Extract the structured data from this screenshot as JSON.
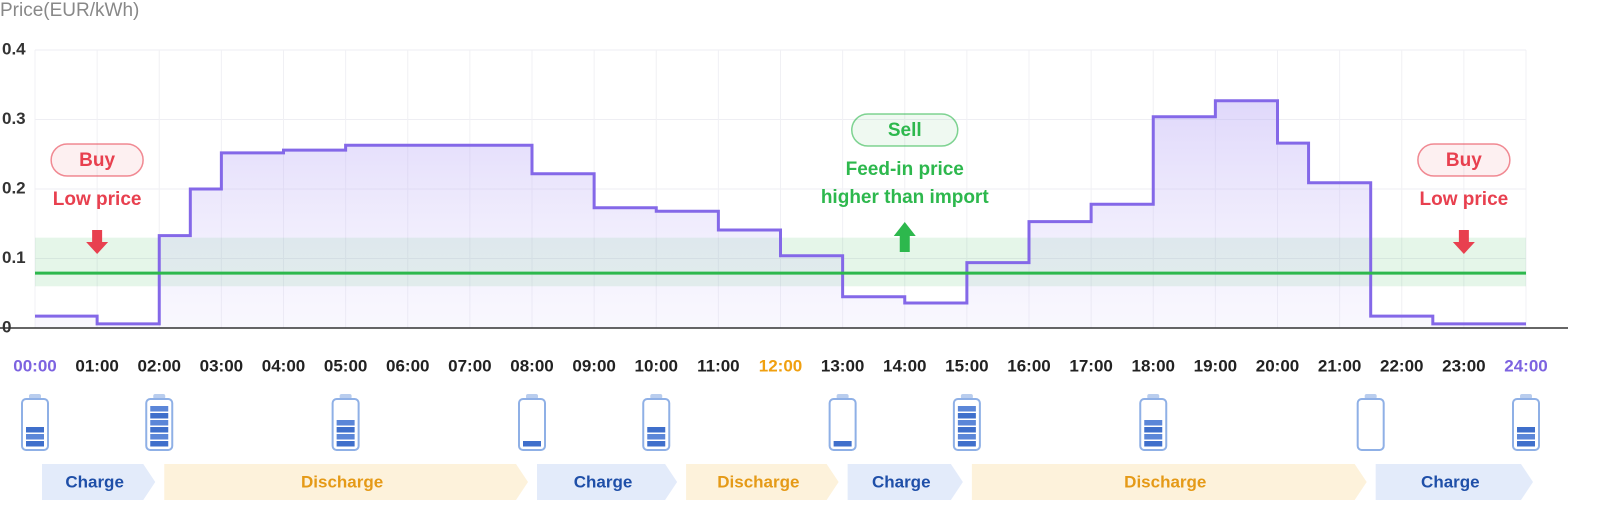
{
  "chart_data": {
    "type": "step",
    "y_label": "Price(EUR/kWh)",
    "x": [
      0,
      1,
      2,
      2.5,
      3,
      4,
      5,
      8,
      9,
      10,
      11,
      12,
      13,
      14,
      15,
      16,
      17,
      18,
      19,
      20,
      20.5,
      21.5,
      22.5,
      24
    ],
    "values": [
      0.017,
      0.006,
      0.133,
      0.2,
      0.252,
      0.256,
      0.263,
      0.222,
      0.173,
      0.168,
      0.141,
      0.104,
      0.045,
      0.036,
      0.094,
      0.153,
      0.178,
      0.304,
      0.327,
      0.266,
      0.209,
      0.017,
      0.006,
      0.006
    ],
    "color": "#8468e8",
    "xlim": [
      0,
      24
    ],
    "ylim": [
      0,
      0.4
    ],
    "yticks": [
      0,
      0.1,
      0.2,
      0.3,
      0.4
    ],
    "xticks": [
      {
        "value": 0,
        "label": "00:00"
      },
      {
        "value": 1,
        "label": "01:00"
      },
      {
        "value": 2,
        "label": "02:00"
      },
      {
        "value": 3,
        "label": "03:00"
      },
      {
        "value": 4,
        "label": "04:00"
      },
      {
        "value": 5,
        "label": "05:00"
      },
      {
        "value": 6,
        "label": "06:00"
      },
      {
        "value": 7,
        "label": "07:00"
      },
      {
        "value": 8,
        "label": "08:00"
      },
      {
        "value": 9,
        "label": "09:00"
      },
      {
        "value": 10,
        "label": "10:00"
      },
      {
        "value": 11,
        "label": "11:00"
      },
      {
        "value": 12,
        "label": "12:00"
      },
      {
        "value": 13,
        "label": "13:00"
      },
      {
        "value": 14,
        "label": "14:00"
      },
      {
        "value": 15,
        "label": "15:00"
      },
      {
        "value": 16,
        "label": "16:00"
      },
      {
        "value": 17,
        "label": "17:00"
      },
      {
        "value": 18,
        "label": "18:00"
      },
      {
        "value": 19,
        "label": "19:00"
      },
      {
        "value": 20,
        "label": "20:00"
      },
      {
        "value": 21,
        "label": "21:00"
      },
      {
        "value": 22,
        "label": "22:00"
      },
      {
        "value": 23,
        "label": "23:00"
      },
      {
        "value": 24,
        "label": "24:00"
      }
    ],
    "xtick_colors": [
      "#7d63e0",
      "#222",
      "#222",
      "#222",
      "#222",
      "#222",
      "#222",
      "#222",
      "#222",
      "#222",
      "#222",
      "#222",
      "#f0a010",
      "#222",
      "#222",
      "#222",
      "#222",
      "#222",
      "#222",
      "#222",
      "#222",
      "#222",
      "#222",
      "#222",
      "#7d63e0"
    ],
    "grid": true,
    "feed_in_price": 0.079,
    "feed_in_band": [
      0.06,
      0.13
    ],
    "feed_in_color": "#2db84d",
    "annotations": [
      {
        "x": 1,
        "pill": "Buy",
        "text": [
          "Low price"
        ],
        "color": "#e8404f",
        "arrow": "down"
      },
      {
        "x": 14,
        "pill": "Sell",
        "text": [
          "Feed-in price",
          "higher than import"
        ],
        "color": "#2db84d",
        "arrow": "up"
      },
      {
        "x": 23,
        "pill": "Buy",
        "text": [
          "Low price"
        ],
        "color": "#e8404f",
        "arrow": "down"
      }
    ],
    "batteries": {
      "x": [
        0,
        2,
        5,
        8,
        10,
        13,
        15,
        18,
        21.5,
        24
      ],
      "levels": [
        3,
        6,
        4,
        1,
        3,
        1,
        6,
        4,
        0,
        3
      ],
      "max": 6
    },
    "phases": [
      {
        "label": "Charge",
        "start": 0,
        "end": 2,
        "color": "#e3ebfa",
        "text_color": "#1f4fa8"
      },
      {
        "label": "Discharge",
        "start": 2,
        "end": 8,
        "color": "#fdf2db",
        "text_color": "#e59a17"
      },
      {
        "label": "Charge",
        "start": 8,
        "end": 10.4,
        "color": "#e3ebfa",
        "text_color": "#1f4fa8"
      },
      {
        "label": "Discharge",
        "start": 10.4,
        "end": 13,
        "color": "#fdf2db",
        "text_color": "#e59a17"
      },
      {
        "label": "Charge",
        "start": 13,
        "end": 15,
        "color": "#e3ebfa",
        "text_color": "#1f4fa8"
      },
      {
        "label": "Discharge",
        "start": 15,
        "end": 21.5,
        "color": "#fdf2db",
        "text_color": "#e59a17"
      },
      {
        "label": "Charge",
        "start": 21.5,
        "end": 24,
        "color": "#e3ebfa",
        "text_color": "#1f4fa8"
      }
    ]
  }
}
